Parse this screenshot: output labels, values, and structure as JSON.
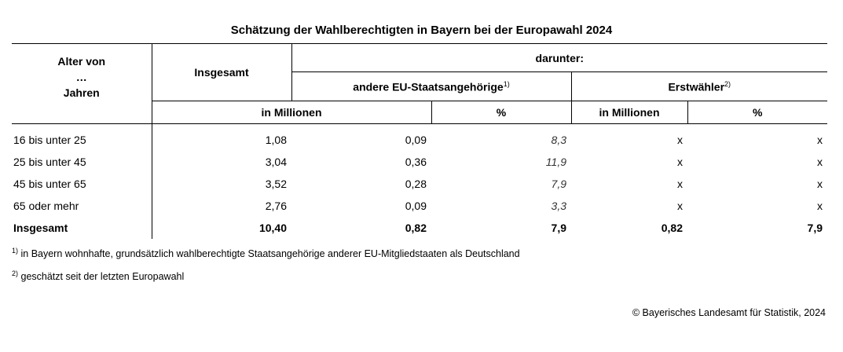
{
  "title": "Schätzung der Wahlberechtigten in Bayern bei der Europawahl 2024",
  "header": {
    "age_line1": "Alter von",
    "age_line2": "…",
    "age_line3": "Jahren",
    "total": "Insgesamt",
    "darunter": "darunter:",
    "eu_group": "andere EU-Staatsangehörige",
    "eu_group_note": "1)",
    "first_voters": "Erstwähler",
    "first_voters_note": "2)",
    "unit_millions": "in Millionen",
    "unit_percent": "%"
  },
  "rows": [
    {
      "age": "16 bis unter 25",
      "total": "1,08",
      "eu_mio": "0,09",
      "eu_pct": "8,3",
      "first_mio": "x",
      "first_pct": "x"
    },
    {
      "age": "25 bis unter 45",
      "total": "3,04",
      "eu_mio": "0,36",
      "eu_pct": "11,9",
      "first_mio": "x",
      "first_pct": "x"
    },
    {
      "age": "45 bis unter 65",
      "total": "3,52",
      "eu_mio": "0,28",
      "eu_pct": "7,9",
      "first_mio": "x",
      "first_pct": "x"
    },
    {
      "age": "65 oder mehr",
      "total": "2,76",
      "eu_mio": "0,09",
      "eu_pct": "3,3",
      "first_mio": "x",
      "first_pct": "x"
    }
  ],
  "total_row": {
    "age": "Insgesamt",
    "total": "10,40",
    "eu_mio": "0,82",
    "eu_pct": "7,9",
    "first_mio": "0,82",
    "first_pct": "7,9"
  },
  "footnotes": [
    {
      "mark": "1)",
      "text": " in Bayern wohnhafte, grundsätzlich wahlberechtigte Staatsangehörige anderer EU-Mitgliedstaaten als Deutschland"
    },
    {
      "mark": "2)",
      "text": " geschätzt seit der letzten Europawahl"
    }
  ],
  "copyright": "© Bayerisches Landesamt für Statistik, 2024"
}
